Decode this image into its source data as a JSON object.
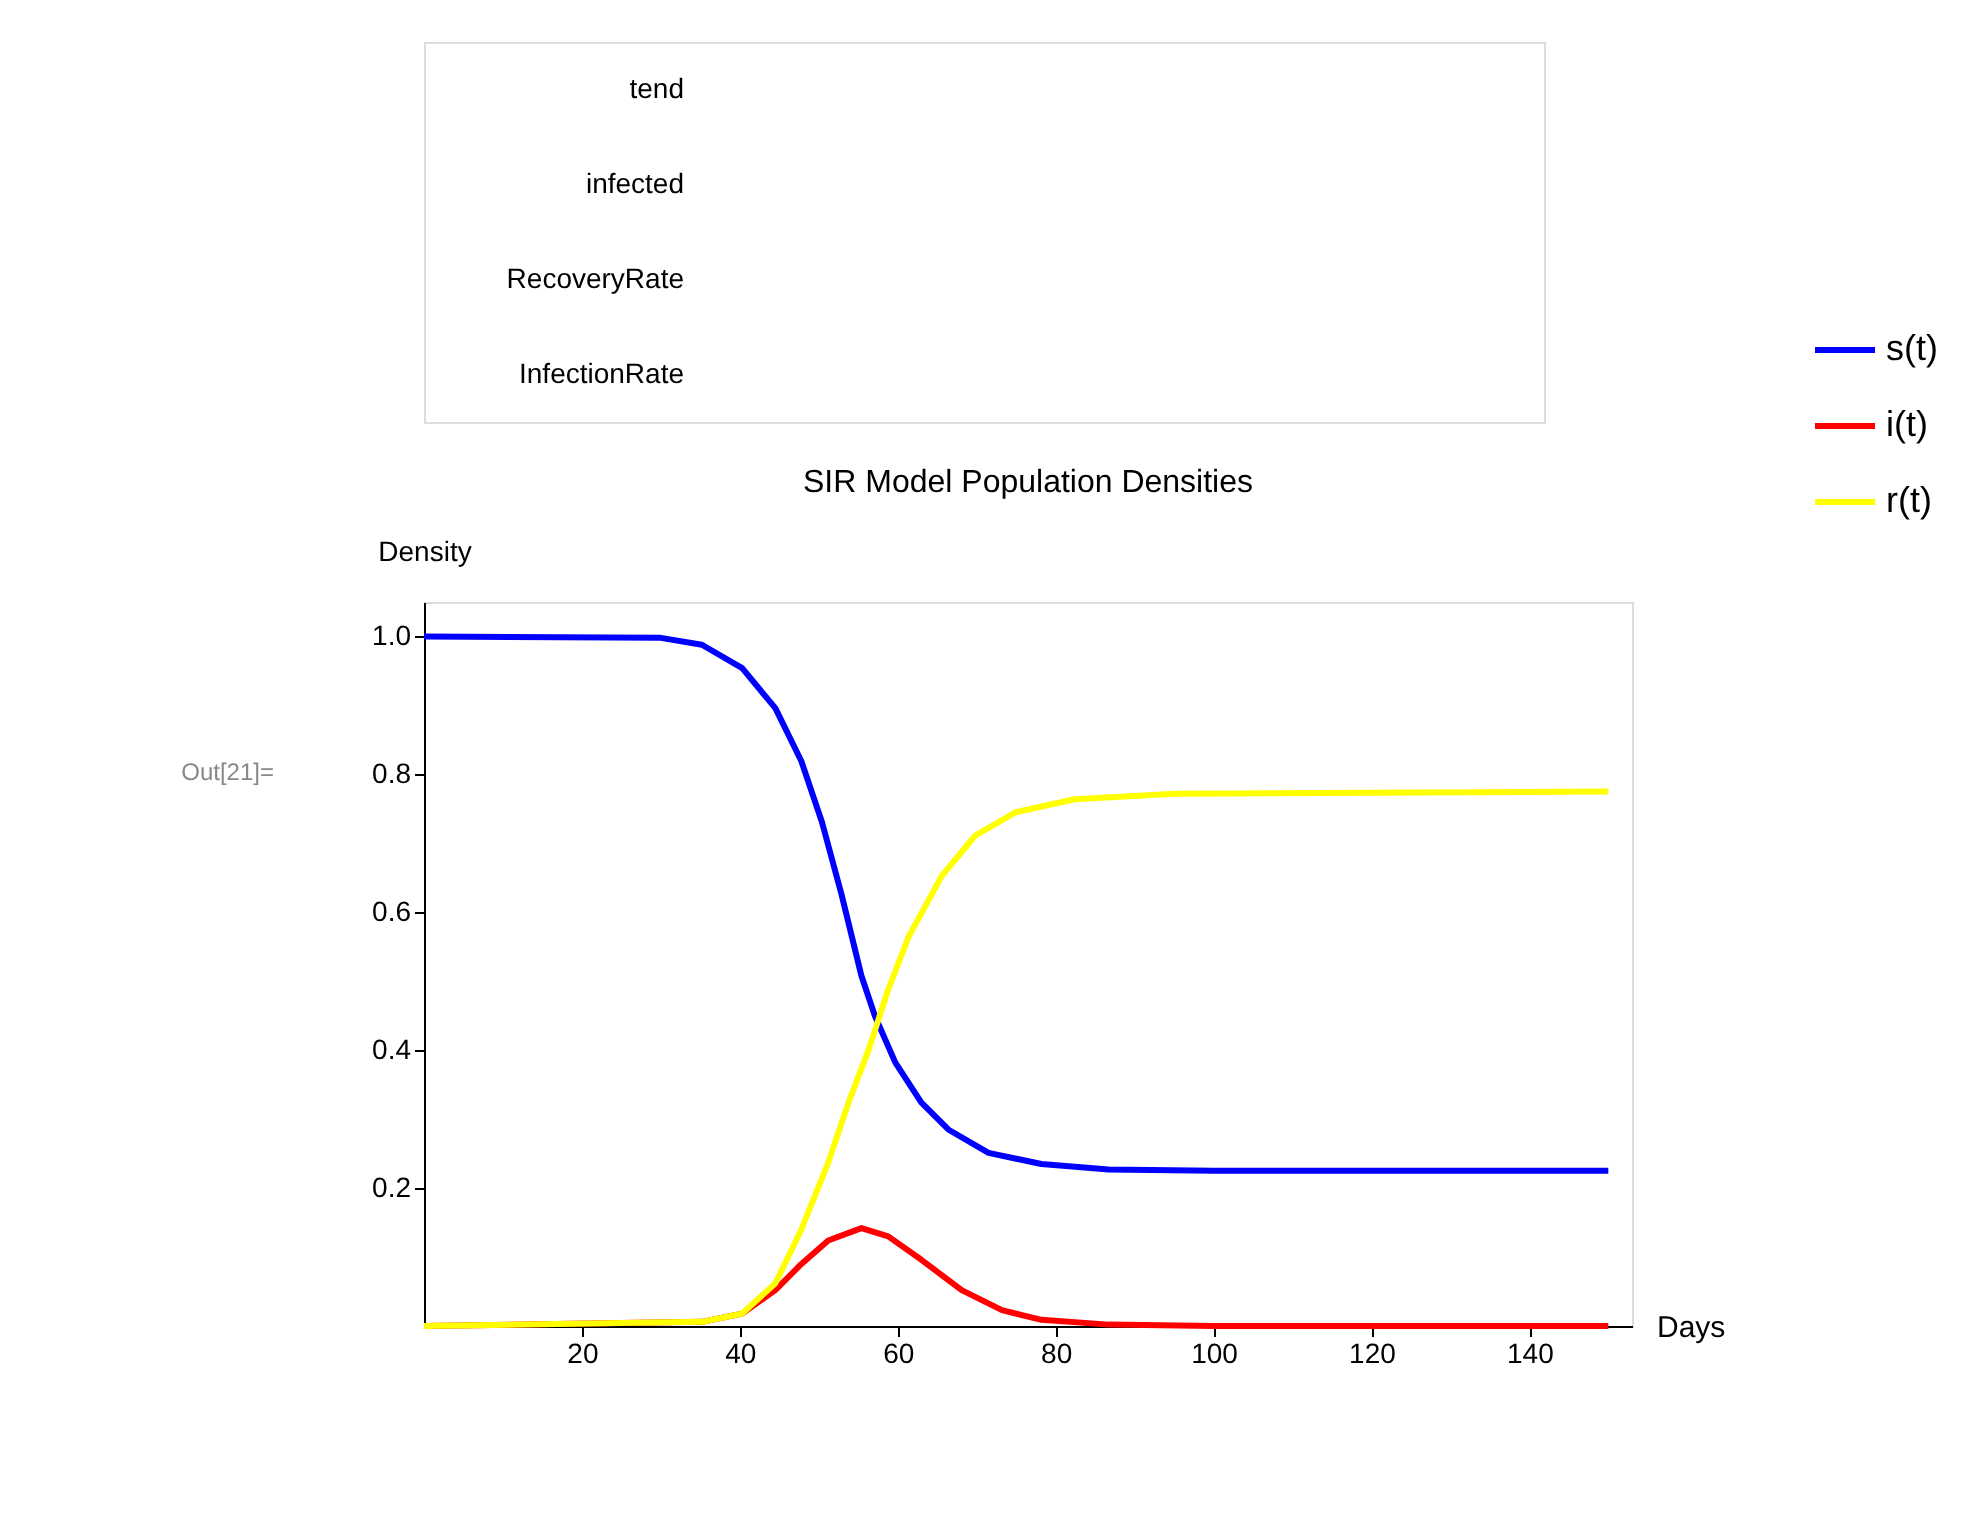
{
  "chart_data": [
    {
      "type": "other",
      "annotations": [
        "tend",
        "infected",
        "RecoveryRate",
        "InfectionRate"
      ]
    },
    {
      "type": "line",
      "title": "SIR Model Population Densities",
      "xlabel": "Days",
      "ylabel": "Density",
      "xlim": [
        0,
        153
      ],
      "ylim": [
        0,
        1.05
      ],
      "xticks": [
        20,
        40,
        60,
        80,
        100,
        120,
        140
      ],
      "yticks": [
        0.2,
        0.4,
        0.6,
        0.8,
        {
          "value": 1,
          "label": "1.0"
        }
      ],
      "legend": "right",
      "grid": false,
      "marker": "none",
      "line_style": "solid",
      "annotations": [
        "Out[21]="
      ],
      "series": [
        {
          "name": "s(t)",
          "color": "#0000ff",
          "x": [
            0,
            30,
            35.2,
            40.3,
            44.5,
            47.8,
            50.4,
            52.9,
            55.4,
            57.1,
            59.7,
            63,
            66.4,
            71.5,
            78.2,
            86.7,
            100,
            150
          ],
          "values": [
            1.0,
            0.998,
            0.988,
            0.954,
            0.896,
            0.819,
            0.731,
            0.625,
            0.508,
            0.45,
            0.382,
            0.324,
            0.285,
            0.251,
            0.235,
            0.227,
            0.225,
            0.225
          ]
        },
        {
          "name": "i(t)",
          "color": "#ff0000",
          "x": [
            0,
            35.2,
            40.3,
            44.5,
            47.8,
            51.2,
            55.4,
            58.8,
            63,
            68.1,
            73.2,
            78.2,
            86.7,
            100,
            150
          ],
          "values": [
            0,
            0.006,
            0.018,
            0.052,
            0.09,
            0.124,
            0.142,
            0.13,
            0.096,
            0.052,
            0.023,
            0.009,
            0.002,
            0.0,
            0
          ]
        },
        {
          "name": "r(t)",
          "color": "#ffff00",
          "x": [
            0,
            35.2,
            40.3,
            44.5,
            47.8,
            51.2,
            53.8,
            56.3,
            58.8,
            61.4,
            65.6,
            69.8,
            74.9,
            82.4,
            95.1,
            150
          ],
          "values": [
            0,
            0.006,
            0.018,
            0.062,
            0.14,
            0.237,
            0.325,
            0.4,
            0.488,
            0.565,
            0.653,
            0.711,
            0.745,
            0.764,
            0.772,
            0.775
          ]
        }
      ]
    }
  ]
}
